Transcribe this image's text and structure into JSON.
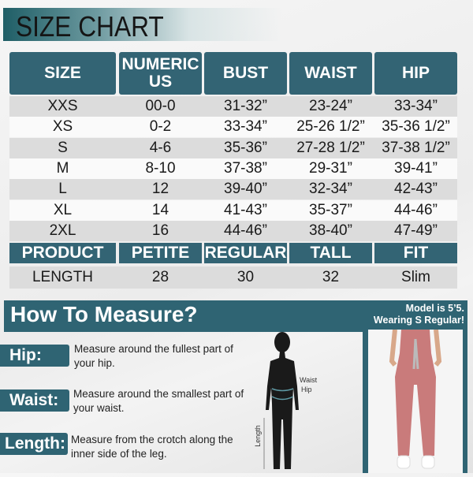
{
  "title": "SIZE CHART",
  "table": {
    "headers": [
      "SIZE",
      "NUMERIC US",
      "BUST",
      "WAIST",
      "HIP"
    ],
    "rows": [
      [
        "XXS",
        "00-0",
        "31-32”",
        "23-24”",
        "33-34”"
      ],
      [
        "XS",
        "0-2",
        "33-34”",
        "25-26 1/2”",
        "35-36 1/2”"
      ],
      [
        "S",
        "4-6",
        "35-36”",
        "27-28 1/2”",
        "37-38 1/2”"
      ],
      [
        "M",
        "8-10",
        "37-38”",
        "29-31”",
        "39-41”"
      ],
      [
        "L",
        "12",
        "39-40”",
        "32-34”",
        "42-43”"
      ],
      [
        "XL",
        "14",
        "41-43”",
        "35-37”",
        "44-46”"
      ],
      [
        "2XL",
        "16",
        "44-46”",
        "38-40”",
        "47-49”"
      ]
    ],
    "product_headers": [
      "PRODUCT",
      "PETITE",
      "REGULAR",
      "TALL",
      "FIT"
    ],
    "product_row": [
      "LENGTH",
      "28",
      "30",
      "32",
      "Slim"
    ]
  },
  "measure": {
    "title": "How To Measure?",
    "items": [
      {
        "label": "Hip:",
        "text": "Measure around the fullest part of your hip."
      },
      {
        "label": "Waist:",
        "text": "Measure around the smallest part of your waist."
      },
      {
        "label": "Length:",
        "text": "Measure from the crotch along the inner side of the leg."
      }
    ],
    "figure_labels": {
      "waist": "Waist",
      "hip": "Hip",
      "length": "Length"
    }
  },
  "model": {
    "line1": "Model is 5’5.",
    "line2": "Wearing S Regular!"
  },
  "colors": {
    "teal": "#336474",
    "pants": "#c97b7b"
  }
}
